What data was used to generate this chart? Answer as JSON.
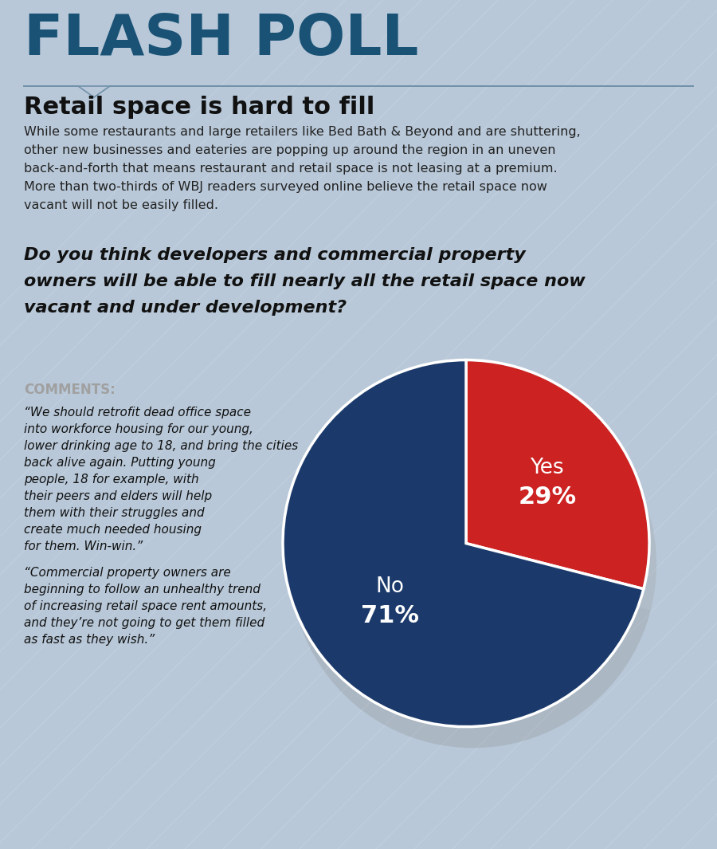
{
  "title_big": "FLASH POLL",
  "title_big_color": "#1a5276",
  "subtitle": "Retail space is hard to fill",
  "subtitle_color": "#111111",
  "body_text": "While some restaurants and large retailers like Bed Bath & Beyond and are shuttering,\nother new businesses and eateries are popping up around the region in an uneven\nback-and-forth that means restaurant and retail space is not leasing at a premium.\nMore than two-thirds of WBJ readers surveyed online believe the retail space now\nvacant will not be easily filled.",
  "body_color": "#222222",
  "question_text_line1": "Do you think developers and commercial property",
  "question_text_line2": "owners will be able to fill nearly all the retail space now",
  "question_text_line3": "vacant and under development?",
  "question_color": "#111111",
  "comments_label": "COMMENTS:",
  "comments_color": "#a0a0a0",
  "comment1_lines": [
    "“We should retrofit dead office space",
    "into workforce housing for our young,",
    "lower drinking age to 18, and bring the cities",
    "back alive again. Putting young",
    "people, 18 for example, with",
    "their peers and elders will help",
    "them with their struggles and",
    "create much needed housing",
    "for them. Win-win.”"
  ],
  "comment2_lines": [
    "“Commercial property owners are",
    "beginning to follow an unhealthy trend",
    "of increasing retail space rent amounts,",
    "and they’re not going to get them filled",
    "as fast as they wish.”"
  ],
  "comment_text_color": "#111111",
  "pie_values": [
    29,
    71
  ],
  "pie_labels": [
    "Yes",
    "No"
  ],
  "pie_label_pcts": [
    "29%",
    "71%"
  ],
  "pie_colors": [
    "#cc2222",
    "#1b3a6b"
  ],
  "background_color": "#b8c8d8",
  "stripe_color": "#c2d0de",
  "divider_color": "#7090aa",
  "pie_label_color": "#ffffff"
}
